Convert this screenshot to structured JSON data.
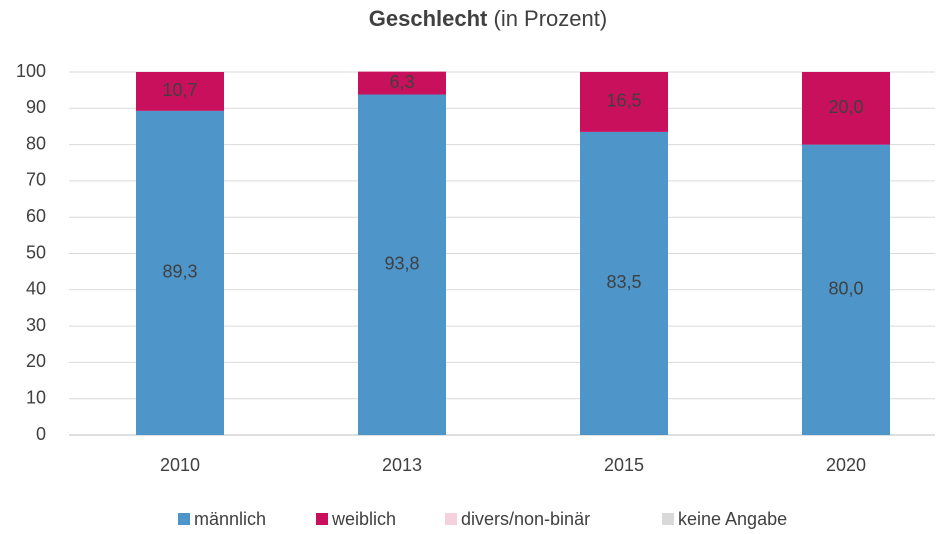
{
  "chart_data": {
    "type": "stacked_bar",
    "title": "Geschlecht",
    "subtitle": "(in Prozent)",
    "categories": [
      "2010",
      "2013",
      "2015",
      "2020"
    ],
    "series": [
      {
        "name": "männlich",
        "color": "#4e95c9",
        "values": [
          89.3,
          93.8,
          83.5,
          80.0
        ],
        "value_labels": [
          "89,3",
          "93,8",
          "83,5",
          "80,0"
        ]
      },
      {
        "name": "weiblich",
        "color": "#c8105c",
        "values": [
          10.7,
          6.3,
          16.5,
          20.0
        ],
        "value_labels": [
          "10,7",
          "6,3",
          "16,5",
          "20,0"
        ]
      },
      {
        "name": "divers/non-binär",
        "color": "#f4d1dc",
        "values": [
          0,
          0,
          0,
          0
        ]
      },
      {
        "name": "keine Angabe",
        "color": "#d9d9d9",
        "values": [
          0,
          0,
          0,
          0
        ]
      }
    ],
    "ylim": [
      0,
      100
    ],
    "yticks": [
      0,
      10,
      20,
      30,
      40,
      50,
      60,
      70,
      80,
      90,
      100
    ],
    "grid": true,
    "legend": "bottom"
  }
}
